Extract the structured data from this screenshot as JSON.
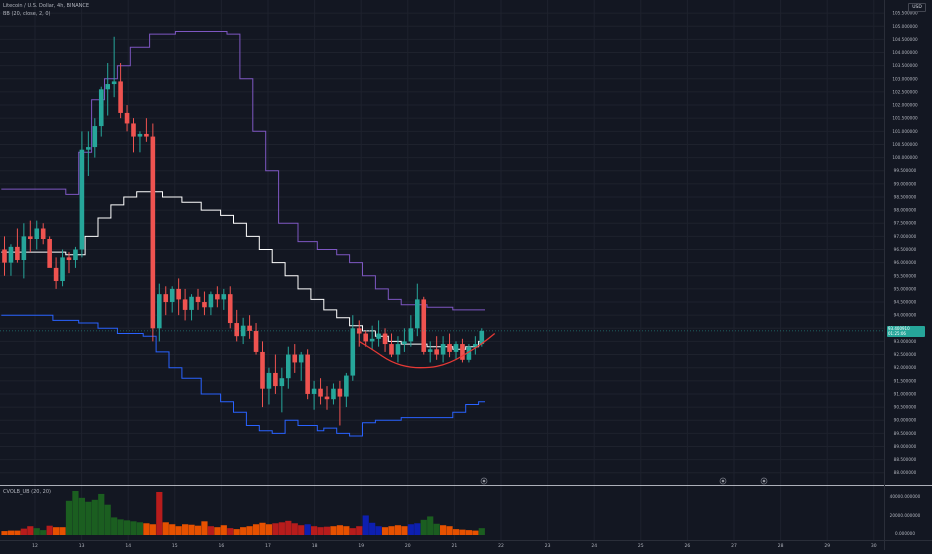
{
  "header": {
    "symbol_line": "Litecoin / U.S. Dollar, 4h, BINANCE",
    "bb_line": "BB (20, close, 2, 0)",
    "currency_button": "USD"
  },
  "volume_pane": {
    "title": "CVOLB_UB (20, 20)",
    "scale_labels": [
      "40000.000000",
      "20000.000000",
      "0.000000"
    ]
  },
  "price_axis": {
    "labels": [
      "105.500000",
      "105.000000",
      "104.500000",
      "104.000000",
      "103.500000",
      "103.000000",
      "102.500000",
      "102.000000",
      "101.500000",
      "101.000000",
      "100.500000",
      "100.000000",
      "99.500000",
      "99.000000",
      "98.500000",
      "98.000000",
      "97.500000",
      "97.000000",
      "96.500000",
      "96.000000",
      "95.500000",
      "95.000000",
      "94.500000",
      "94.000000",
      "93.500000",
      "93.000000",
      "92.500000",
      "92.000000",
      "91.500000",
      "91.000000",
      "90.500000",
      "90.000000",
      "89.500000",
      "89.000000",
      "88.500000",
      "88.000000"
    ],
    "current_price": "93.400910",
    "countdown": "01:25:06"
  },
  "time_axis": {
    "labels": [
      "12",
      "13",
      "14",
      "15",
      "16",
      "17",
      "18",
      "19",
      "20",
      "21",
      "22",
      "23",
      "24",
      "25",
      "26",
      "27",
      "28",
      "29",
      "30"
    ]
  },
  "colors": {
    "up": "#26a69a",
    "down": "#ef5350",
    "bb_upper": "#7e57c2",
    "bb_basis": "#ffffff",
    "bb_lower": "#2962ff",
    "curve": "#e53935",
    "vol_green": "#1b5e20",
    "vol_red": "#b71c1c",
    "vol_orange": "#e65100",
    "vol_blue": "#0d1fb0"
  },
  "chart_data": {
    "type": "candlestick",
    "x_unit": "4h bars from Jul 11",
    "candles": [
      {
        "o": 96.5,
        "h": 97.0,
        "l": 95.5,
        "c": 96.0
      },
      {
        "o": 96.0,
        "h": 96.7,
        "l": 95.5,
        "c": 96.6
      },
      {
        "o": 96.6,
        "h": 97.3,
        "l": 96.0,
        "c": 96.1
      },
      {
        "o": 96.1,
        "h": 97.5,
        "l": 95.4,
        "c": 97.0
      },
      {
        "o": 97.0,
        "h": 97.6,
        "l": 96.4,
        "c": 96.9
      },
      {
        "o": 96.9,
        "h": 97.6,
        "l": 96.5,
        "c": 97.3
      },
      {
        "o": 97.3,
        "h": 97.5,
        "l": 96.7,
        "c": 96.9
      },
      {
        "o": 96.9,
        "h": 97.0,
        "l": 95.9,
        "c": 95.8
      },
      {
        "o": 95.8,
        "h": 96.2,
        "l": 95.0,
        "c": 95.3
      },
      {
        "o": 95.3,
        "h": 96.5,
        "l": 95.1,
        "c": 96.2
      },
      {
        "o": 96.2,
        "h": 96.4,
        "l": 95.6,
        "c": 96.1
      },
      {
        "o": 96.1,
        "h": 96.6,
        "l": 95.8,
        "c": 96.5
      },
      {
        "o": 96.5,
        "h": 101.0,
        "l": 96.2,
        "c": 100.3
      },
      {
        "o": 100.3,
        "h": 101.0,
        "l": 99.3,
        "c": 100.4
      },
      {
        "o": 100.4,
        "h": 101.5,
        "l": 100.0,
        "c": 101.2
      },
      {
        "o": 101.2,
        "h": 102.7,
        "l": 100.8,
        "c": 102.6
      },
      {
        "o": 102.6,
        "h": 103.6,
        "l": 101.6,
        "c": 102.8
      },
      {
        "o": 102.8,
        "h": 104.6,
        "l": 102.3,
        "c": 102.9
      },
      {
        "o": 102.9,
        "h": 103.6,
        "l": 101.5,
        "c": 101.7
      },
      {
        "o": 101.7,
        "h": 102.0,
        "l": 101.0,
        "c": 101.3
      },
      {
        "o": 101.3,
        "h": 101.5,
        "l": 100.2,
        "c": 100.8
      },
      {
        "o": 100.8,
        "h": 101.0,
        "l": 100.2,
        "c": 100.9
      },
      {
        "o": 100.9,
        "h": 101.5,
        "l": 100.6,
        "c": 100.8
      },
      {
        "o": 100.8,
        "h": 101.3,
        "l": 93.0,
        "c": 93.5
      },
      {
        "o": 93.5,
        "h": 95.2,
        "l": 93.0,
        "c": 94.8
      },
      {
        "o": 94.8,
        "h": 95.1,
        "l": 94.0,
        "c": 94.5
      },
      {
        "o": 94.5,
        "h": 95.1,
        "l": 94.1,
        "c": 95.0
      },
      {
        "o": 95.0,
        "h": 95.4,
        "l": 94.0,
        "c": 94.6
      },
      {
        "o": 94.6,
        "h": 95.0,
        "l": 93.8,
        "c": 94.2
      },
      {
        "o": 94.2,
        "h": 94.8,
        "l": 93.8,
        "c": 94.7
      },
      {
        "o": 94.7,
        "h": 95.0,
        "l": 94.2,
        "c": 94.5
      },
      {
        "o": 94.5,
        "h": 94.9,
        "l": 94.0,
        "c": 94.3
      },
      {
        "o": 94.3,
        "h": 94.9,
        "l": 94.0,
        "c": 94.8
      },
      {
        "o": 94.8,
        "h": 95.1,
        "l": 94.3,
        "c": 94.6
      },
      {
        "o": 94.6,
        "h": 95.0,
        "l": 94.2,
        "c": 94.8
      },
      {
        "o": 94.8,
        "h": 95.1,
        "l": 93.5,
        "c": 93.7
      },
      {
        "o": 93.7,
        "h": 94.2,
        "l": 93.0,
        "c": 93.2
      },
      {
        "o": 93.2,
        "h": 93.9,
        "l": 92.9,
        "c": 93.6
      },
      {
        "o": 93.6,
        "h": 94.0,
        "l": 93.1,
        "c": 93.4
      },
      {
        "o": 93.4,
        "h": 93.7,
        "l": 92.5,
        "c": 92.6
      },
      {
        "o": 92.6,
        "h": 93.0,
        "l": 90.5,
        "c": 91.2
      },
      {
        "o": 91.2,
        "h": 92.0,
        "l": 90.6,
        "c": 91.8
      },
      {
        "o": 91.8,
        "h": 92.5,
        "l": 91.0,
        "c": 91.3
      },
      {
        "o": 91.3,
        "h": 92.0,
        "l": 90.3,
        "c": 91.6
      },
      {
        "o": 91.6,
        "h": 92.8,
        "l": 91.2,
        "c": 92.5
      },
      {
        "o": 92.5,
        "h": 92.9,
        "l": 91.8,
        "c": 92.2
      },
      {
        "o": 92.2,
        "h": 92.6,
        "l": 91.5,
        "c": 92.5
      },
      {
        "o": 92.5,
        "h": 92.7,
        "l": 90.8,
        "c": 91.0
      },
      {
        "o": 91.0,
        "h": 91.5,
        "l": 90.4,
        "c": 91.2
      },
      {
        "o": 91.2,
        "h": 91.6,
        "l": 90.6,
        "c": 90.9
      },
      {
        "o": 90.9,
        "h": 91.3,
        "l": 90.4,
        "c": 90.8
      },
      {
        "o": 90.8,
        "h": 91.4,
        "l": 90.6,
        "c": 91.2
      },
      {
        "o": 91.2,
        "h": 91.5,
        "l": 89.8,
        "c": 90.9
      },
      {
        "o": 90.9,
        "h": 91.8,
        "l": 90.5,
        "c": 91.7
      },
      {
        "o": 91.7,
        "h": 94.0,
        "l": 91.5,
        "c": 93.5
      },
      {
        "o": 93.5,
        "h": 93.8,
        "l": 92.8,
        "c": 93.3
      },
      {
        "o": 93.3,
        "h": 93.4,
        "l": 92.8,
        "c": 93.0
      },
      {
        "o": 93.0,
        "h": 93.6,
        "l": 92.7,
        "c": 93.1
      },
      {
        "o": 93.1,
        "h": 93.8,
        "l": 92.8,
        "c": 93.3
      },
      {
        "o": 93.3,
        "h": 93.5,
        "l": 92.6,
        "c": 92.9
      },
      {
        "o": 92.9,
        "h": 93.3,
        "l": 92.4,
        "c": 92.5
      },
      {
        "o": 92.5,
        "h": 93.2,
        "l": 92.2,
        "c": 92.9
      },
      {
        "o": 92.9,
        "h": 93.5,
        "l": 92.6,
        "c": 93.0
      },
      {
        "o": 93.0,
        "h": 94.0,
        "l": 92.8,
        "c": 93.5
      },
      {
        "o": 93.5,
        "h": 95.2,
        "l": 93.2,
        "c": 94.6
      },
      {
        "o": 94.6,
        "h": 94.7,
        "l": 92.5,
        "c": 92.6
      },
      {
        "o": 92.6,
        "h": 93.0,
        "l": 92.2,
        "c": 92.7
      },
      {
        "o": 92.7,
        "h": 93.2,
        "l": 92.3,
        "c": 92.5
      },
      {
        "o": 92.5,
        "h": 93.2,
        "l": 92.2,
        "c": 92.9
      },
      {
        "o": 92.9,
        "h": 93.3,
        "l": 92.4,
        "c": 92.6
      },
      {
        "o": 92.6,
        "h": 93.0,
        "l": 92.3,
        "c": 92.9
      },
      {
        "o": 92.9,
        "h": 93.1,
        "l": 92.2,
        "c": 92.3
      },
      {
        "o": 92.3,
        "h": 92.9,
        "l": 92.2,
        "c": 92.8
      },
      {
        "o": 92.8,
        "h": 93.2,
        "l": 92.5,
        "c": 92.9
      },
      {
        "o": 92.9,
        "h": 93.5,
        "l": 92.8,
        "c": 93.4
      }
    ],
    "volumes": [
      4000,
      4500,
      4500,
      6500,
      9000,
      7000,
      5000,
      9500,
      8000,
      8000,
      35000,
      45000,
      38000,
      34000,
      36000,
      42000,
      31000,
      18000,
      16000,
      15000,
      14000,
      13000,
      12000,
      11000,
      44000,
      13000,
      11000,
      9000,
      11000,
      10500,
      9500,
      14000,
      9000,
      8000,
      10000,
      7000,
      6000,
      8000,
      9000,
      11000,
      12500,
      11000,
      12000,
      13000,
      14500,
      12000,
      10000,
      11000,
      9000,
      8000,
      8500,
      9000,
      10000,
      9000,
      7000,
      9000,
      20000,
      12500,
      9000,
      8000,
      9000,
      10000,
      9000,
      11000,
      12000,
      15500,
      19000,
      11500,
      10000,
      9000,
      6000,
      5500,
      5000,
      4500,
      7000
    ],
    "volume_colors": [
      "orange",
      "orange",
      "orange",
      "red",
      "red",
      "green",
      "green",
      "red",
      "orange",
      "orange",
      "green",
      "green",
      "green",
      "green",
      "green",
      "green",
      "green",
      "green",
      "green",
      "green",
      "green",
      "green",
      "orange",
      "orange",
      "red",
      "orange",
      "orange",
      "orange",
      "orange",
      "orange",
      "orange",
      "orange",
      "red",
      "orange",
      "orange",
      "red",
      "orange",
      "orange",
      "orange",
      "orange",
      "orange",
      "orange",
      "red",
      "red",
      "red",
      "red",
      "red",
      "blue",
      "red",
      "red",
      "red",
      "orange",
      "orange",
      "orange",
      "red",
      "red",
      "blue",
      "blue",
      "blue",
      "orange",
      "orange",
      "orange",
      "orange",
      "blue",
      "blue",
      "green",
      "green",
      "green",
      "orange",
      "orange",
      "orange",
      "orange",
      "orange",
      "orange",
      "green"
    ],
    "bb_upper_steps": [
      [
        0,
        98.8
      ],
      [
        10,
        98.6
      ],
      [
        12,
        100.2
      ],
      [
        14,
        102.2
      ],
      [
        16,
        103.0
      ],
      [
        18,
        103.5
      ],
      [
        20,
        104.2
      ],
      [
        23,
        104.7
      ],
      [
        27,
        104.8
      ],
      [
        35,
        104.7
      ],
      [
        37,
        103.0
      ],
      [
        39,
        101.0
      ],
      [
        41,
        99.5
      ],
      [
        43,
        97.5
      ],
      [
        46,
        96.8
      ],
      [
        49,
        96.5
      ],
      [
        52,
        96.3
      ],
      [
        54,
        96.0
      ],
      [
        56,
        95.5
      ],
      [
        58,
        95.0
      ],
      [
        60,
        94.6
      ],
      [
        62,
        94.4
      ],
      [
        66,
        94.3
      ],
      [
        70,
        94.2
      ],
      [
        74,
        94.2
      ]
    ],
    "bb_lower_steps": [
      [
        0,
        94.0
      ],
      [
        8,
        93.8
      ],
      [
        12,
        93.7
      ],
      [
        15,
        93.5
      ],
      [
        18,
        93.3
      ],
      [
        22,
        93.2
      ],
      [
        24,
        92.6
      ],
      [
        26,
        92.0
      ],
      [
        28,
        91.6
      ],
      [
        31,
        91.0
      ],
      [
        34,
        90.7
      ],
      [
        36,
        90.3
      ],
      [
        38,
        89.8
      ],
      [
        40,
        89.6
      ],
      [
        42,
        89.5
      ],
      [
        44,
        90.0
      ],
      [
        46,
        89.8
      ],
      [
        49,
        89.6
      ],
      [
        50,
        89.7
      ],
      [
        52,
        89.5
      ],
      [
        54,
        89.4
      ],
      [
        56,
        89.9
      ],
      [
        58,
        90.0
      ],
      [
        62,
        90.1
      ],
      [
        66,
        90.1
      ],
      [
        70,
        90.3
      ],
      [
        72,
        90.6
      ],
      [
        74,
        90.7
      ]
    ],
    "bb_basis_steps": [
      [
        0,
        96.4
      ],
      [
        10,
        96.3
      ],
      [
        13,
        97.0
      ],
      [
        15,
        97.7
      ],
      [
        17,
        98.2
      ],
      [
        19,
        98.5
      ],
      [
        21,
        98.7
      ],
      [
        23,
        98.7
      ],
      [
        25,
        98.5
      ],
      [
        28,
        98.3
      ],
      [
        31,
        98.0
      ],
      [
        34,
        97.8
      ],
      [
        36,
        97.5
      ],
      [
        38,
        97.0
      ],
      [
        40,
        96.5
      ],
      [
        42,
        96.0
      ],
      [
        44,
        95.5
      ],
      [
        46,
        95.0
      ],
      [
        48,
        94.6
      ],
      [
        50,
        94.2
      ],
      [
        52,
        93.9
      ],
      [
        54,
        93.6
      ],
      [
        56,
        93.4
      ],
      [
        58,
        93.2
      ],
      [
        60,
        93.0
      ],
      [
        62,
        92.9
      ],
      [
        66,
        92.8
      ],
      [
        70,
        92.7
      ],
      [
        72,
        92.8
      ],
      [
        74,
        93.0
      ]
    ],
    "curve": [
      [
        55,
        93.0
      ],
      [
        57,
        92.7
      ],
      [
        60,
        92.2
      ],
      [
        63,
        92.0
      ],
      [
        66,
        92.0
      ],
      [
        68,
        92.1
      ],
      [
        70,
        92.3
      ],
      [
        72,
        92.6
      ],
      [
        74,
        92.9
      ],
      [
        76,
        93.3
      ]
    ],
    "y_range": [
      87.8,
      106.0
    ]
  }
}
